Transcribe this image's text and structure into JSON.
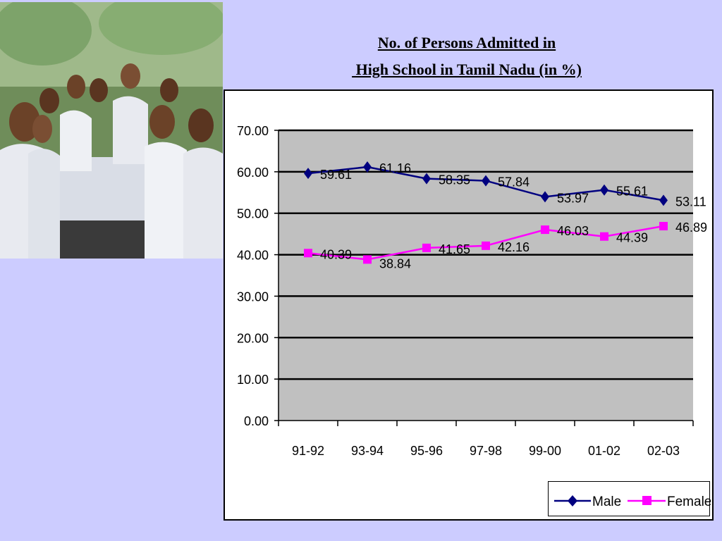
{
  "title_line1": "No. of Persons Admitted in",
  "title_line2": " High School in Tamil Nadu (in %)",
  "colors": {
    "male": "#000080",
    "female": "#ff00ff",
    "plot_bg": "#c0c0c0",
    "page_bg": "#ccccff"
  },
  "chart_data": {
    "type": "line",
    "categories": [
      "91-92",
      "93-94",
      "95-96",
      "97-98",
      "99-00",
      "01-02",
      "02-03"
    ],
    "series": [
      {
        "name": "Male",
        "values": [
          59.61,
          61.16,
          58.35,
          57.84,
          53.97,
          55.61,
          53.11
        ],
        "labels": [
          "59.61",
          "61.16",
          "58.35",
          "57.84",
          "53.97",
          "55.61",
          "53.11"
        ],
        "marker": "diamond"
      },
      {
        "name": "Female",
        "values": [
          40.39,
          38.84,
          41.65,
          42.16,
          46.03,
          44.39,
          46.89
        ],
        "labels": [
          "40.39",
          "38.84",
          "41.65",
          "42.16",
          "46.03",
          "44.39",
          "46.89"
        ],
        "marker": "square"
      }
    ],
    "yticks": [
      "0.00",
      "10.00",
      "20.00",
      "30.00",
      "40.00",
      "50.00",
      "60.00",
      "70.00"
    ],
    "ylim": [
      0,
      70
    ],
    "grid": true,
    "legend": "bottom-right"
  }
}
